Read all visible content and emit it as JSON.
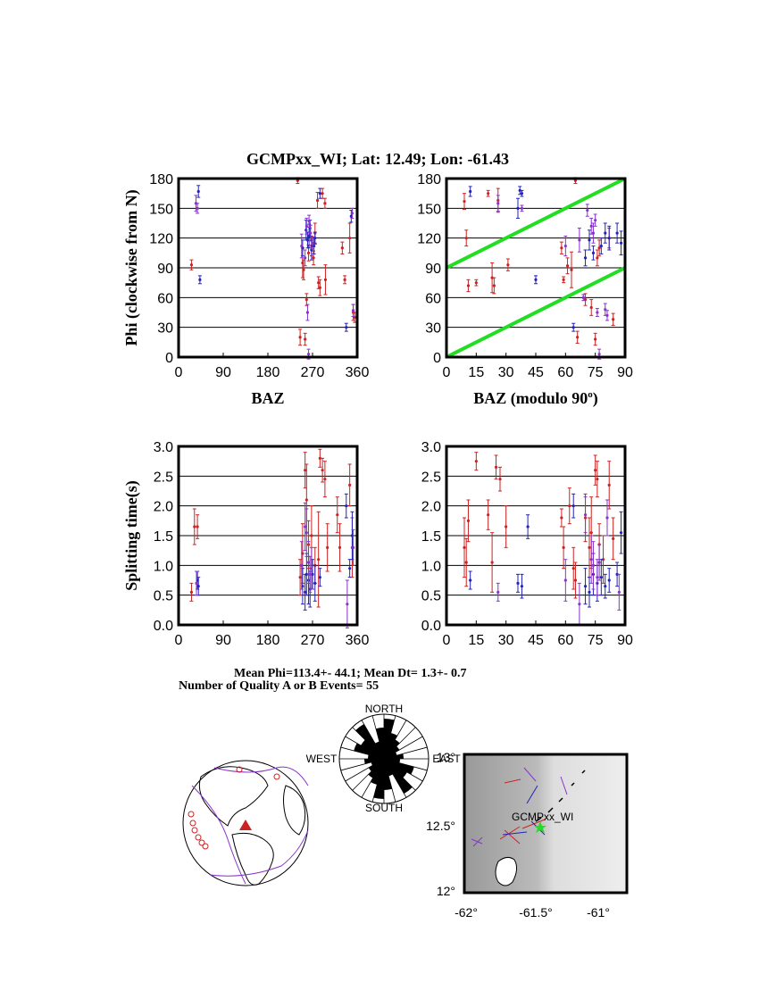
{
  "title": "GCMPxx_WI; Lat:  12.49;  Lon:  -61.43",
  "colors": {
    "red": "#cc2222",
    "blue": "#2222bb",
    "purple": "#8833cc",
    "green": "#22dd22",
    "grid": "#000000"
  },
  "panels": {
    "phi_baz": {
      "ylabel": "Phi (clockwise from N)",
      "xlabel": "BAZ",
      "xticks": [
        "0",
        "90",
        "180",
        "270",
        "360"
      ],
      "yticks": [
        "0",
        "30",
        "60",
        "90",
        "120",
        "150",
        "180"
      ]
    },
    "phi_mod": {
      "xlabel": "BAZ (modulo 90",
      "xlabel_sup": "o",
      "xlabel_end": ")",
      "xticks": [
        "0",
        "15",
        "30",
        "45",
        "60",
        "75",
        "90"
      ],
      "yticks": [
        "0",
        "30",
        "60",
        "90",
        "120",
        "150",
        "180"
      ]
    },
    "dt_baz": {
      "ylabel": "Splitting time(s)",
      "xticks": [
        "0",
        "90",
        "180",
        "270",
        "360"
      ],
      "yticks": [
        "0.0",
        "0.5",
        "1.0",
        "1.5",
        "2.0",
        "2.5",
        "3.0"
      ]
    },
    "dt_mod": {
      "xticks": [
        "0",
        "15",
        "30",
        "45",
        "60",
        "75",
        "90"
      ],
      "yticks": [
        "0.0",
        "0.5",
        "1.0",
        "1.5",
        "2.0",
        "2.5",
        "3.0"
      ]
    }
  },
  "stats": {
    "line1": "Mean Phi=113.4+- 44.1; Mean Dt=  1.3+-  0.7",
    "line2": "Number of Quality A or B Events= 55"
  },
  "rose": {
    "north": "NORTH",
    "south": "SOUTH",
    "west": "WEST",
    "east": "EAST"
  },
  "map": {
    "station": "GCMPxx_WI",
    "lat_labels": [
      "12°",
      "12.5°",
      "13°"
    ],
    "lon_labels": [
      "-62°",
      "-61.5°",
      "-61°"
    ]
  },
  "chart_data": [
    {
      "type": "scatter",
      "title": "GCMPxx_WI; Lat:  12.49;  Lon:  -61.43",
      "xlabel": "BAZ",
      "ylabel": "Phi (clockwise from N)",
      "xlim": [
        0,
        360
      ],
      "ylim": [
        0,
        180
      ],
      "grid": "horizontal",
      "series": [
        {
          "color": "red",
          "points": [
            [
              26,
              93,
              5
            ],
            [
              240,
              178,
              3
            ],
            [
              245,
              20,
              8
            ],
            [
              250,
              95,
              15
            ],
            [
              252,
              88,
              10
            ],
            [
              255,
              18,
              6
            ],
            [
              258,
              58,
              6
            ],
            [
              262,
              105,
              8
            ],
            [
              268,
              112,
              10
            ],
            [
              272,
              100,
              7
            ],
            [
              275,
              125,
              10
            ],
            [
              280,
              158,
              8
            ],
            [
              282,
              75,
              6
            ],
            [
              285,
              70,
              8
            ],
            [
              290,
              165,
              5
            ],
            [
              295,
              155,
              5
            ],
            [
              296,
              78,
              15
            ],
            [
              330,
              110,
              6
            ],
            [
              335,
              78,
              4
            ],
            [
              345,
              120,
              15
            ],
            [
              352,
              45,
              8
            ],
            [
              355,
              40,
              5
            ]
          ]
        },
        {
          "color": "blue",
          "points": [
            [
              40,
              167,
              6
            ],
            [
              43,
              78,
              4
            ],
            [
              250,
              110,
              8
            ],
            [
              257,
              128,
              10
            ],
            [
              260,
              118,
              8
            ],
            [
              263,
              122,
              12
            ],
            [
              265,
              130,
              8
            ],
            [
              268,
              108,
              10
            ],
            [
              273,
              112,
              8
            ],
            [
              275,
              120,
              6
            ],
            [
              285,
              165,
              5
            ],
            [
              338,
              30,
              4
            ],
            [
              348,
              142,
              6
            ]
          ]
        },
        {
          "color": "purple",
          "points": [
            [
              35,
              155,
              8
            ],
            [
              38,
              150,
              5
            ],
            [
              248,
              112,
              12
            ],
            [
              255,
              100,
              8
            ],
            [
              258,
              132,
              8
            ],
            [
              260,
              45,
              8
            ],
            [
              263,
              137,
              6
            ],
            [
              266,
              125,
              8
            ],
            [
              270,
              115,
              6
            ],
            [
              262,
              3,
              5
            ],
            [
              350,
              145,
              5
            ],
            [
              352,
              47,
              6
            ]
          ]
        }
      ]
    },
    {
      "type": "scatter",
      "xlabel": "BAZ (modulo 90°)",
      "xlim": [
        0,
        90
      ],
      "ylim": [
        0,
        180
      ],
      "grid": "horizontal",
      "reference_lines": [
        [
          [
            0,
            90
          ],
          [
            90,
            180
          ]
        ],
        [
          [
            0,
            0
          ],
          [
            90,
            90
          ]
        ]
      ],
      "series": [
        {
          "color": "red",
          "points": [
            [
              9,
              157,
              8
            ],
            [
              10,
              120,
              8
            ],
            [
              11,
              72,
              6
            ],
            [
              15,
              75,
              3
            ],
            [
              21,
              165,
              3
            ],
            [
              23,
              80,
              15
            ],
            [
              24,
              72,
              8
            ],
            [
              26,
              158,
              12
            ],
            [
              31,
              93,
              6
            ],
            [
              58,
              110,
              6
            ],
            [
              59,
              78,
              3
            ],
            [
              61,
              92,
              8
            ],
            [
              63,
              88,
              18
            ],
            [
              65,
              178,
              3
            ],
            [
              66,
              20,
              6
            ],
            [
              70,
              58,
              6
            ],
            [
              73,
              50,
              8
            ],
            [
              75,
              18,
              6
            ],
            [
              76,
              100,
              8
            ],
            [
              77,
              110,
              8
            ],
            [
              82,
              120,
              10
            ],
            [
              84,
              38,
              6
            ]
          ]
        },
        {
          "color": "blue",
          "points": [
            [
              12,
              167,
              5
            ],
            [
              36,
              150,
              10
            ],
            [
              37,
              168,
              4
            ],
            [
              38,
              165,
              3
            ],
            [
              45,
              78,
              4
            ],
            [
              64,
              30,
              4
            ],
            [
              70,
              100,
              8
            ],
            [
              72,
              118,
              10
            ],
            [
              74,
              105,
              7
            ],
            [
              78,
              112,
              8
            ],
            [
              80,
              125,
              10
            ],
            [
              82,
              120,
              12
            ],
            [
              86,
              125,
              10
            ],
            [
              88,
              115,
              12
            ]
          ]
        },
        {
          "color": "purple",
          "points": [
            [
              26,
              155,
              8
            ],
            [
              38,
              150,
              3
            ],
            [
              60,
              112,
              10
            ],
            [
              67,
              118,
              12
            ],
            [
              69,
              60,
              3
            ],
            [
              71,
              148,
              6
            ],
            [
              73,
              132,
              8
            ],
            [
              74,
              125,
              10
            ],
            [
              75,
              138,
              6
            ],
            [
              76,
              45,
              4
            ],
            [
              77,
              3,
              5
            ],
            [
              80,
              48,
              6
            ],
            [
              81,
              42,
              5
            ]
          ]
        }
      ]
    },
    {
      "type": "scatter",
      "ylabel": "Splitting time(s)",
      "xlim": [
        0,
        360
      ],
      "ylim": [
        0,
        3
      ],
      "grid": "horizontal",
      "series": [
        {
          "color": "red",
          "points": [
            [
              26,
              0.55,
              0.15
            ],
            [
              32,
              1.65,
              0.3
            ],
            [
              38,
              1.65,
              0.2
            ],
            [
              245,
              0.8,
              0.3
            ],
            [
              250,
              1.2,
              0.5
            ],
            [
              255,
              2.6,
              0.3
            ],
            [
              258,
              2.1,
              0.6
            ],
            [
              262,
              1.35,
              0.4
            ],
            [
              268,
              1.5,
              0.5
            ],
            [
              275,
              1.0,
              0.3
            ],
            [
              282,
              1.1,
              0.8
            ],
            [
              285,
              2.8,
              0.15
            ],
            [
              290,
              2.6,
              0.2
            ],
            [
              295,
              2.45,
              0.3
            ],
            [
              300,
              1.3,
              0.4
            ],
            [
              320,
              1.85,
              0.3
            ],
            [
              325,
              1.3,
              0.4
            ],
            [
              345,
              2.35,
              0.35
            ],
            [
              350,
              1.3,
              0.5
            ]
          ]
        },
        {
          "color": "blue",
          "points": [
            [
              38,
              0.75,
              0.15
            ],
            [
              40,
              0.65,
              0.15
            ],
            [
              250,
              0.65,
              0.3
            ],
            [
              255,
              0.55,
              0.3
            ],
            [
              258,
              0.85,
              0.35
            ],
            [
              262,
              0.75,
              0.4
            ],
            [
              265,
              0.6,
              0.3
            ],
            [
              270,
              0.85,
              0.25
            ],
            [
              275,
              0.7,
              0.3
            ],
            [
              285,
              0.8,
              0.15
            ],
            [
              338,
              2.0,
              0.2
            ],
            [
              345,
              0.95,
              0.15
            ],
            [
              350,
              1.5,
              0.4
            ]
          ]
        },
        {
          "color": "purple",
          "points": [
            [
              36,
              0.7,
              0.2
            ],
            [
              248,
              1.0,
              0.4
            ],
            [
              255,
              1.65,
              0.4
            ],
            [
              258,
              1.55,
              0.4
            ],
            [
              262,
              1.05,
              0.35
            ],
            [
              265,
              0.85,
              0.3
            ],
            [
              268,
              0.95,
              0.35
            ],
            [
              340,
              0.35,
              0.4
            ],
            [
              352,
              1.3,
              0.3
            ]
          ]
        }
      ]
    },
    {
      "type": "scatter",
      "xlim": [
        0,
        90
      ],
      "ylim": [
        0,
        3
      ],
      "grid": "horizontal",
      "series": [
        {
          "color": "red",
          "points": [
            [
              9,
              1.3,
              0.5
            ],
            [
              10,
              1.05,
              0.4
            ],
            [
              11,
              1.75,
              0.35
            ],
            [
              15,
              2.75,
              0.15
            ],
            [
              21,
              1.85,
              0.25
            ],
            [
              23,
              1.05,
              0.5
            ],
            [
              25,
              2.65,
              0.2
            ],
            [
              27,
              2.45,
              0.2
            ],
            [
              30,
              1.65,
              0.35
            ],
            [
              58,
              1.8,
              0.15
            ],
            [
              59,
              1.3,
              0.35
            ],
            [
              62,
              2.0,
              0.3
            ],
            [
              64,
              0.95,
              0.35
            ],
            [
              65,
              0.75,
              0.3
            ],
            [
              70,
              1.8,
              0.4
            ],
            [
              72,
              1.3,
              0.5
            ],
            [
              73,
              1.55,
              0.6
            ],
            [
              75,
              2.6,
              0.25
            ],
            [
              76,
              2.45,
              0.3
            ],
            [
              77,
              1.35,
              0.35
            ],
            [
              79,
              1.1,
              0.4
            ],
            [
              82,
              2.35,
              0.4
            ],
            [
              84,
              1.45,
              0.35
            ]
          ]
        },
        {
          "color": "blue",
          "points": [
            [
              12,
              0.75,
              0.15
            ],
            [
              36,
              0.7,
              0.15
            ],
            [
              38,
              0.65,
              0.2
            ],
            [
              41,
              1.65,
              0.2
            ],
            [
              64,
              2.0,
              0.2
            ],
            [
              70,
              0.65,
              0.3
            ],
            [
              72,
              0.55,
              0.25
            ],
            [
              74,
              0.85,
              0.35
            ],
            [
              76,
              0.7,
              0.3
            ],
            [
              78,
              0.8,
              0.3
            ],
            [
              80,
              0.65,
              0.2
            ],
            [
              82,
              0.75,
              0.2
            ],
            [
              86,
              0.85,
              0.2
            ],
            [
              88,
              1.55,
              0.35
            ]
          ]
        },
        {
          "color": "purple",
          "points": [
            [
              26,
              0.55,
              0.15
            ],
            [
              60,
              0.75,
              0.35
            ],
            [
              67,
              0.35,
              0.35
            ],
            [
              70,
              1.85,
              0.3
            ],
            [
              73,
              1.1,
              0.4
            ],
            [
              74,
              1.0,
              0.4
            ],
            [
              76,
              0.8,
              0.3
            ],
            [
              77,
              1.05,
              0.3
            ],
            [
              81,
              1.8,
              0.3
            ],
            [
              87,
              0.55,
              0.3
            ]
          ]
        }
      ]
    }
  ]
}
